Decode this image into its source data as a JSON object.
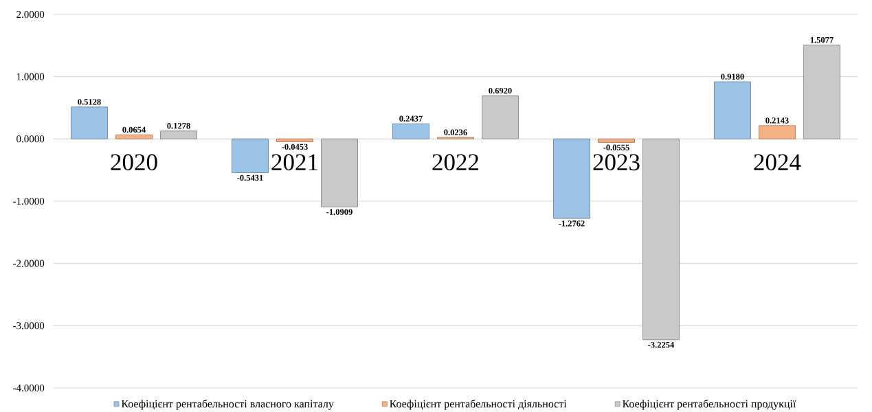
{
  "chart_data": {
    "type": "bar",
    "categories": [
      "2020",
      "2021",
      "2022",
      "2023",
      "2024"
    ],
    "series": [
      {
        "name": "Коефіцієнт рентабельності власного капіталу",
        "color": "#9dc3e6",
        "values": [
          0.5128,
          -0.5431,
          0.2437,
          -1.2762,
          0.918
        ],
        "value_labels": [
          "0.5128",
          "-0.5431",
          "0.2437",
          "-1.2762",
          "0.9180"
        ]
      },
      {
        "name": "Коефіцієнт рентабельності діяльності",
        "color": "#f4b183",
        "values": [
          0.0654,
          -0.0453,
          0.0236,
          -0.0555,
          0.2143
        ],
        "value_labels": [
          "0.0654",
          "-0.0453",
          "0.0236",
          "-0.0555",
          "0.2143"
        ]
      },
      {
        "name": "Коефіцієнт рентабельності продукції",
        "color": "#c9c9c9",
        "values": [
          0.1278,
          -1.0909,
          0.692,
          -3.2254,
          1.5077
        ],
        "value_labels": [
          "0.1278",
          "-1.0909",
          "0.6920",
          "-3.2254",
          "1.5077"
        ]
      }
    ],
    "ylim": [
      -4,
      2
    ],
    "yticks": [
      {
        "value": -4,
        "label": "-4.0000"
      },
      {
        "value": -3,
        "label": "-3.0000"
      },
      {
        "value": -2,
        "label": "-2.0000"
      },
      {
        "value": -1,
        "label": "-1.0000"
      },
      {
        "value": 0,
        "label": "0.0000"
      },
      {
        "value": 1,
        "label": "1.0000"
      },
      {
        "value": 2,
        "label": "2.0000"
      }
    ],
    "grid": "y",
    "legend": "bottom"
  }
}
